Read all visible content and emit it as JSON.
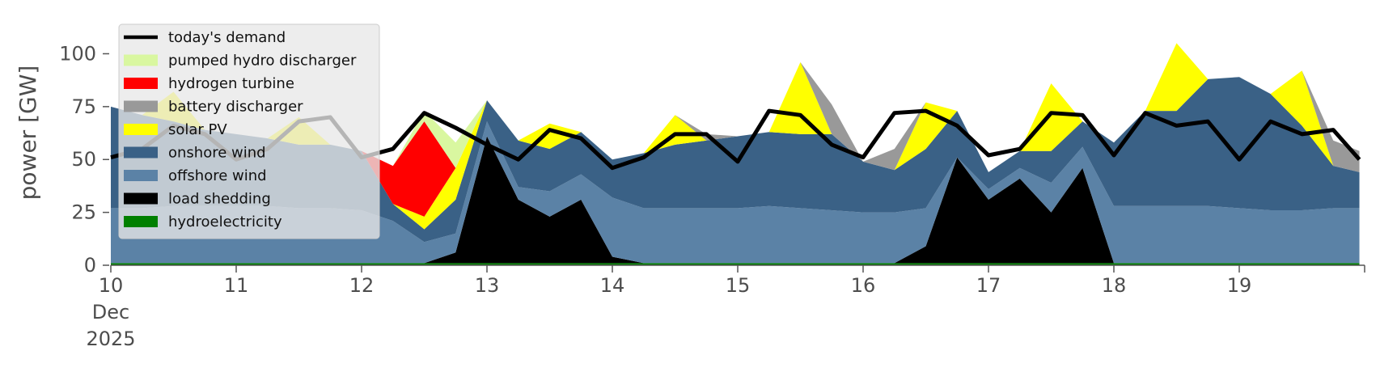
{
  "chart_data": {
    "type": "area",
    "stacked": true,
    "ylabel": "power [GW]",
    "xlabel": "",
    "ylim": [
      0,
      117
    ],
    "yticks": [
      0,
      25,
      50,
      75,
      100
    ],
    "xlim": [
      "2025-12-10",
      "2025-12-20"
    ],
    "x_tick_days": [
      "2025-12-10",
      "2025-12-11",
      "2025-12-12",
      "2025-12-13",
      "2025-12-14",
      "2025-12-15",
      "2025-12-16",
      "2025-12-17",
      "2025-12-18",
      "2025-12-19"
    ],
    "x_tick_labels": [
      "10",
      "11",
      "12",
      "13",
      "14",
      "15",
      "16",
      "17",
      "18",
      "19"
    ],
    "x_first_tick_month": "Dec",
    "x_first_tick_year": "2025",
    "legend_position": "top-left",
    "x": [
      "2025-12-10",
      "2025-12-10T06:00",
      "2025-12-10T12:00",
      "2025-12-10T18:00",
      "2025-12-11",
      "2025-12-11T06:00",
      "2025-12-11T12:00",
      "2025-12-11T18:00",
      "2025-12-12",
      "2025-12-12T06:00",
      "2025-12-12T12:00",
      "2025-12-12T18:00",
      "2025-12-13",
      "2025-12-13T06:00",
      "2025-12-13T12:00",
      "2025-12-13T18:00",
      "2025-12-14",
      "2025-12-14T06:00",
      "2025-12-14T12:00",
      "2025-12-14T18:00",
      "2025-12-15",
      "2025-12-15T06:00",
      "2025-12-15T12:00",
      "2025-12-15T18:00",
      "2025-12-16",
      "2025-12-16T06:00",
      "2025-12-16T12:00",
      "2025-12-16T18:00",
      "2025-12-17",
      "2025-12-17T06:00",
      "2025-12-17T12:00",
      "2025-12-17T18:00",
      "2025-12-18",
      "2025-12-18T06:00",
      "2025-12-18T12:00",
      "2025-12-18T18:00",
      "2025-12-19",
      "2025-12-19T06:00",
      "2025-12-19T12:00",
      "2025-12-19T18:00",
      "2025-12-19T23:00"
    ],
    "series": [
      {
        "name": "hydroelectricity",
        "color": "#008000",
        "values": [
          1,
          1,
          1,
          1,
          1,
          1,
          1,
          1,
          1,
          1,
          1,
          1,
          1,
          1,
          1,
          1,
          1,
          1,
          1,
          1,
          1,
          1,
          1,
          1,
          1,
          1,
          1,
          1,
          1,
          1,
          1,
          1,
          1,
          1,
          1,
          1,
          1,
          1,
          1,
          1,
          1
        ]
      },
      {
        "name": "load shedding",
        "color": "#000000",
        "values": [
          0,
          0,
          0,
          0,
          0,
          0,
          0,
          0,
          0,
          0,
          0,
          5,
          60,
          30,
          22,
          30,
          3,
          0,
          0,
          0,
          0,
          0,
          0,
          0,
          0,
          0,
          8,
          50,
          30,
          40,
          24,
          45,
          0,
          0,
          0,
          0,
          0,
          0,
          0,
          0,
          0
        ]
      },
      {
        "name": "offshore wind",
        "color": "#5b82a6",
        "values": [
          26,
          26,
          27,
          27,
          27,
          27,
          26,
          26,
          25,
          20,
          10,
          9,
          7,
          6,
          12,
          12,
          28,
          26,
          26,
          26,
          26,
          27,
          26,
          25,
          24,
          24,
          18,
          0,
          5,
          5,
          14,
          10,
          27,
          27,
          27,
          27,
          26,
          25,
          25,
          26,
          26
        ]
      },
      {
        "name": "onshore wind",
        "color": "#3a6186",
        "values": [
          48,
          44,
          40,
          36,
          34,
          32,
          30,
          30,
          28,
          8,
          6,
          16,
          10,
          22,
          20,
          20,
          18,
          26,
          30,
          32,
          34,
          35,
          35,
          36,
          24,
          20,
          28,
          22,
          8,
          8,
          15,
          12,
          30,
          45,
          45,
          60,
          62,
          55,
          40,
          20,
          17
        ]
      },
      {
        "name": "solar PV",
        "color": "#ffff00",
        "values": [
          0,
          0,
          14,
          0,
          0,
          0,
          13,
          0,
          0,
          0,
          6,
          15,
          0,
          0,
          12,
          0,
          0,
          0,
          14,
          0,
          0,
          0,
          34,
          0,
          0,
          0,
          22,
          0,
          0,
          0,
          32,
          0,
          0,
          0,
          32,
          0,
          0,
          0,
          26,
          0,
          0
        ]
      },
      {
        "name": "battery discharger",
        "color": "#999999",
        "values": [
          0,
          0,
          0,
          0,
          0,
          0,
          0,
          0,
          0,
          0,
          0,
          0,
          0,
          0,
          0,
          0,
          0,
          0,
          0,
          3,
          0,
          0,
          0,
          14,
          0,
          10,
          0,
          0,
          0,
          0,
          0,
          0,
          0,
          0,
          0,
          0,
          0,
          0,
          0,
          12,
          10
        ]
      },
      {
        "name": "hydrogen turbine",
        "color": "#ff0000",
        "values": [
          0,
          0,
          0,
          0,
          0,
          0,
          0,
          0,
          0,
          18,
          45,
          0,
          0,
          0,
          0,
          0,
          0,
          0,
          0,
          0,
          0,
          0,
          0,
          0,
          0,
          0,
          0,
          0,
          0,
          0,
          0,
          0,
          0,
          0,
          0,
          0,
          0,
          0,
          0,
          0,
          0
        ]
      },
      {
        "name": "pumped hydro discharger",
        "color": "#d9f7a0",
        "values": [
          0,
          0,
          0,
          0,
          0,
          0,
          0,
          0,
          0,
          0,
          5,
          12,
          0,
          0,
          0,
          0,
          0,
          0,
          0,
          0,
          0,
          0,
          0,
          0,
          0,
          0,
          0,
          0,
          0,
          0,
          0,
          0,
          0,
          0,
          0,
          0,
          0,
          0,
          0,
          0,
          0
        ]
      }
    ],
    "demand": {
      "name": "today's demand",
      "color": "#000000",
      "values": [
        51,
        55,
        66,
        62,
        50,
        55,
        68,
        70,
        51,
        55,
        72,
        65,
        57,
        50,
        64,
        60,
        46,
        51,
        62,
        62,
        49,
        73,
        71,
        57,
        51,
        72,
        73,
        66,
        52,
        55,
        72,
        71,
        52,
        72,
        66,
        68,
        50,
        68,
        62,
        64,
        50
      ]
    },
    "legend_order": [
      "today's demand",
      "pumped hydro discharger",
      "hydrogen turbine",
      "battery discharger",
      "solar PV",
      "onshore wind",
      "offshore wind",
      "load shedding",
      "hydroelectricity"
    ]
  }
}
